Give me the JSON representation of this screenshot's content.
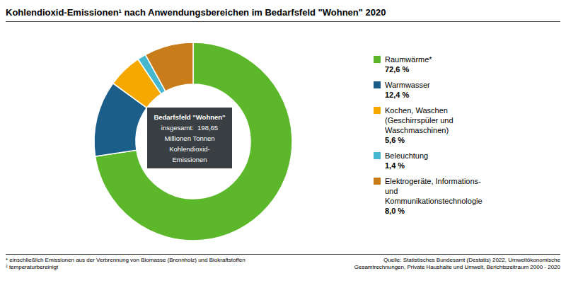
{
  "chart_data": {
    "type": "pie",
    "title": "Kohlendioxid-Emissionen¹ nach Anwendungsbereichen im Bedarfsfeld \"Wohnen\" 2020",
    "categories": [
      "Raumwärme*",
      "Warmwasser",
      "Kochen, Waschen\n(Geschirrspüler und\nWaschmaschinen)",
      "Beleuchtung",
      "Elektrogeräte, Informations-\nund\nKommunikationstechnologie"
    ],
    "values": [
      72.6,
      12.4,
      5.6,
      1.4,
      8.0
    ],
    "value_labels": [
      "72,6 %",
      "12,4 %",
      "5,6 %",
      "1,4 %",
      "8,0 %"
    ],
    "colors": [
      "#5cb82a",
      "#1b5e8a",
      "#f5a800",
      "#45b8d0",
      "#c87c1a"
    ],
    "data_labels": true,
    "annotations": [
      "Bedarfsfeld \"Wohnen\"",
      "insgesamt:  198,65",
      "Millionen Tonnen",
      "Kohlendioxid-",
      "Emissionen"
    ],
    "footnotes": [
      "* einschließlich Emissionen aus der Verbrennung von Biomasse (Brennholz) und Biokraftstoffen\n² temperaturbereinigt",
      "Quelle: Statistisches Bundesamt (Destatis) 2022, Umweltökonomische\nGesamtrechnungen, Private Haushalte und Umwelt, Berichtszeitraum 2000 - 2020"
    ]
  }
}
